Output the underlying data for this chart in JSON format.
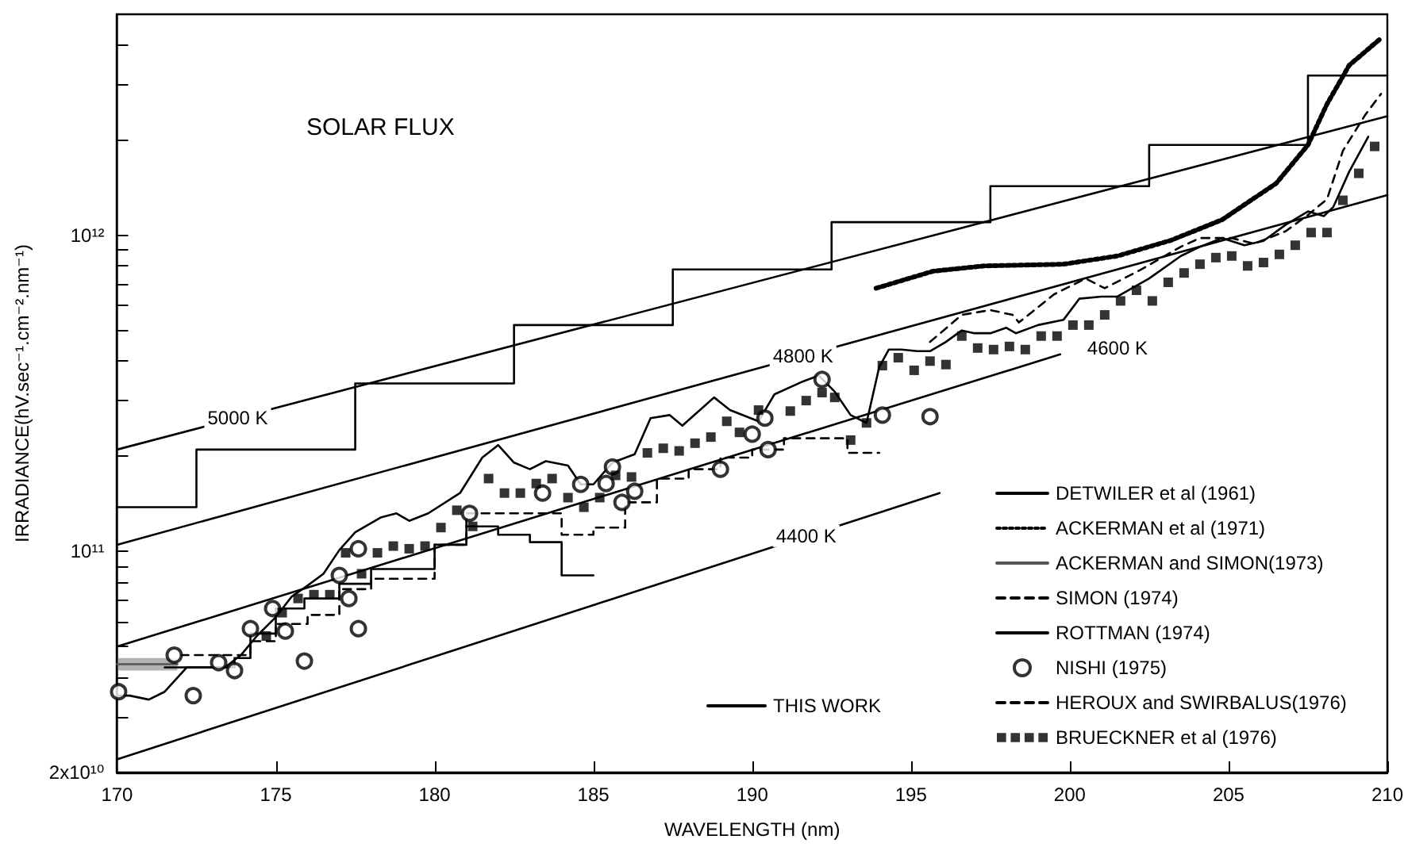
{
  "chart_data": {
    "type": "line",
    "title": "SOLAR FLUX",
    "xlabel": "WAVELENGTH (nm)",
    "ylabel": "IRRADIANCE(hV.sec⁻¹.cm⁻².nm⁻¹)",
    "log": "y",
    "grid": false,
    "legend": "bottom right",
    "xlim": [
      170,
      210
    ],
    "xticks": [
      170,
      175,
      180,
      185,
      190,
      195,
      200,
      205,
      210
    ],
    "ylim": [
      20000000000.0,
      5000000000000.0
    ],
    "yticks": [
      {
        "value": 20000000000.0,
        "label": "2x10¹⁰"
      },
      {
        "value": 30000000000.0,
        "label": null
      },
      {
        "value": 40000000000.0,
        "label": null
      },
      {
        "value": 50000000000.0,
        "label": null
      },
      {
        "value": 60000000000.0,
        "label": null
      },
      {
        "value": 70000000000.0,
        "label": null
      },
      {
        "value": 80000000000.0,
        "label": null
      },
      {
        "value": 90000000000.0,
        "label": null
      },
      {
        "value": 100000000000.0,
        "label": "10¹¹"
      },
      {
        "value": 200000000000.0,
        "label": null
      },
      {
        "value": 300000000000.0,
        "label": null
      },
      {
        "value": 400000000000.0,
        "label": null
      },
      {
        "value": 500000000000.0,
        "label": null
      },
      {
        "value": 600000000000.0,
        "label": null
      },
      {
        "value": 700000000000.0,
        "label": null
      },
      {
        "value": 800000000000.0,
        "label": null
      },
      {
        "value": 900000000000.0,
        "label": null
      },
      {
        "value": 1000000000000.0,
        "label": "10¹²"
      },
      {
        "value": 2000000000000.0,
        "label": null
      },
      {
        "value": 3000000000000.0,
        "label": null
      },
      {
        "value": 4000000000000.0,
        "label": null
      }
    ],
    "annotations": [
      {
        "text": "5000 K",
        "x": 173.8,
        "y": 264000000000.0
      },
      {
        "text": "4800 K",
        "x": 191.6,
        "y": 415000000000.0
      },
      {
        "text": "4600 K",
        "x": 201.5,
        "y": 440000000000.0
      },
      {
        "text": "4400 K",
        "x": 191.7,
        "y": 112000000000.0
      }
    ],
    "series": [
      {
        "name": "THIS WORK",
        "line_style": "solid",
        "color": "#000000",
        "x": [
          170.0,
          170.4,
          171.0,
          171.5,
          172.2,
          173.4,
          173.9,
          174.4,
          175.0,
          175.5,
          176.0,
          176.5,
          177.0,
          177.5,
          178.3,
          178.8,
          179.2,
          179.8,
          180.8,
          181.5,
          182.0,
          182.5,
          183.0,
          183.5,
          184.2,
          184.6,
          185.0,
          185.6,
          186.3,
          186.8,
          187.4,
          187.8,
          188.8,
          189.3,
          190.2,
          190.7,
          191.6,
          192.1,
          192.6,
          193.1,
          193.6,
          194.0,
          194.3,
          194.7,
          195.2,
          195.6,
          196.1,
          196.6,
          197.0,
          197.5,
          198.0,
          198.3,
          199.0,
          199.8,
          200.3,
          201.0,
          201.5,
          202.5,
          203.5,
          204.1,
          204.8,
          205.5,
          206.1,
          206.8,
          207.5,
          208.0,
          208.3,
          208.8,
          209.4
        ],
        "values": [
          35000000000.0,
          35000000000.0,
          34000000000.0,
          36000000000.0,
          43000000000.0,
          43000000000.0,
          47000000000.0,
          54000000000.0,
          62000000000.0,
          72000000000.0,
          78000000000.0,
          85000000000.0,
          101000000000.0,
          115000000000.0,
          128000000000.0,
          132000000000.0,
          125000000000.0,
          132000000000.0,
          153000000000.0,
          198000000000.0,
          217000000000.0,
          191000000000.0,
          182000000000.0,
          193000000000.0,
          187000000000.0,
          163000000000.0,
          163000000000.0,
          191000000000.0,
          203000000000.0,
          264000000000.0,
          270000000000.0,
          250000000000.0,
          307000000000.0,
          280000000000.0,
          258000000000.0,
          314000000000.0,
          345000000000.0,
          360000000000.0,
          320000000000.0,
          270000000000.0,
          255000000000.0,
          383000000000.0,
          435000000000.0,
          435000000000.0,
          430000000000.0,
          430000000000.0,
          460000000000.0,
          500000000000.0,
          490000000000.0,
          490000000000.0,
          510000000000.0,
          490000000000.0,
          520000000000.0,
          540000000000.0,
          630000000000.0,
          640000000000.0,
          640000000000.0,
          730000000000.0,
          860000000000.0,
          920000000000.0,
          980000000000.0,
          930000000000.0,
          960000000000.0,
          1080000000000.0,
          1190000000000.0,
          1150000000000.0,
          1230000000000.0,
          1590000000000.0,
          2050000000000.0
        ]
      },
      {
        "name": "DETWILER et al (1961)",
        "type": "step",
        "line_style": "solid",
        "color": "#000000",
        "x": [
          170,
          172.5,
          177.5,
          182.5,
          187.5,
          192.5,
          197.5,
          202.5,
          207.5,
          210
        ],
        "values": [
          138000000000.0,
          210000000000.0,
          340000000000.0,
          520000000000.0,
          780000000000.0,
          1100000000000.0,
          1430000000000.0,
          1930000000000.0,
          3200000000000.0,
          3200000000000.0
        ]
      },
      {
        "name": "ACKERMAN et al (1971)",
        "line_style": "dotted",
        "color": "#000000",
        "x": [
          193.9,
          195.7,
          197.3,
          199.8,
          201.5,
          203.2,
          204.8,
          206.5,
          207.5,
          208.1,
          208.8,
          209.8
        ],
        "values": [
          680000000000.0,
          770000000000.0,
          800000000000.0,
          810000000000.0,
          860000000000.0,
          965000000000.0,
          1120000000000.0,
          1460000000000.0,
          1930000000000.0,
          2600000000000.0,
          3450000000000.0,
          4200000000000.0
        ]
      },
      {
        "name": "ACKERMAN and SIMON(1973)",
        "line_style": "solid",
        "color": "#555555",
        "x": [
          170,
          171.9
        ],
        "values": [
          44000000000.0,
          44000000000.0
        ],
        "lower": [
          42000000000.0,
          42000000000.0
        ],
        "upper": [
          46000000000.0,
          46000000000.0
        ]
      },
      {
        "name": "SIMON (1974)",
        "line_style": "dashed",
        "color": "#000000",
        "x": [
          195.6,
          196.6,
          197.5,
          198.2,
          198.4,
          199.5,
          200.5,
          201.1,
          202.2,
          203.5,
          204.1,
          205.1,
          205.8,
          206.8,
          207.5,
          208.1,
          208.6,
          209.3,
          209.8
        ],
        "values": [
          460000000000.0,
          560000000000.0,
          580000000000.0,
          560000000000.0,
          530000000000.0,
          650000000000.0,
          730000000000.0,
          680000000000.0,
          775000000000.0,
          920000000000.0,
          980000000000.0,
          980000000000.0,
          940000000000.0,
          1030000000000.0,
          1160000000000.0,
          1300000000000.0,
          1850000000000.0,
          2400000000000.0,
          2800000000000.0
        ]
      },
      {
        "name": "ROTTMAN (1974)",
        "type": "step",
        "line_style": "solid",
        "color": "#000000",
        "x": [
          171.5,
          173.7,
          174.2,
          175,
          175.9,
          177,
          178,
          180,
          181,
          182,
          183,
          184,
          185
        ],
        "values": [
          43000000000.0,
          46000000000.0,
          55000000000.0,
          66000000000.0,
          71000000000.0,
          79000000000.0,
          88000000000.0,
          105000000000.0,
          120000000000.0,
          113000000000.0,
          107000000000.0,
          84000000000.0,
          84000000000.0
        ]
      },
      {
        "name": "NISHI (1975)",
        "type": "scatter",
        "marker": "circle",
        "color": "#000000",
        "x": [
          170.05,
          171.8,
          172.4,
          173.2,
          173.7,
          174.2,
          174.9,
          175.3,
          175.9,
          177.0,
          177.3,
          177.6,
          177.6,
          181.1,
          183.4,
          184.6,
          185.4,
          185.6,
          185.9,
          186.3,
          189.0,
          190.0,
          190.4,
          190.5,
          192.2,
          194.1,
          195.6
        ],
        "values": [
          36000000000.0,
          47000000000.0,
          35000000000.0,
          44500000000.0,
          42000000000.0,
          57000000000.0,
          66000000000.0,
          56000000000.0,
          45000000000.0,
          84000000000.0,
          71000000000.0,
          57000000000.0,
          102000000000.0,
          132000000000.0,
          153000000000.0,
          163000000000.0,
          164000000000.0,
          185000000000.0,
          143000000000.0,
          155000000000.0,
          182000000000.0,
          235000000000.0,
          264000000000.0,
          210000000000.0,
          350000000000.0,
          270000000000.0,
          267000000000.0
        ]
      },
      {
        "name": "HEROUX and SWIRBALUS(1976)",
        "type": "step",
        "line_style": "dashed",
        "color": "#000000",
        "x": [
          172,
          174.2,
          175,
          176,
          177,
          178,
          180,
          181,
          184,
          185,
          186,
          187,
          188,
          189,
          190,
          191,
          193,
          194
        ],
        "values": [
          47000000000.0,
          52000000000.0,
          59000000000.0,
          63000000000.0,
          76000000000.0,
          82000000000.0,
          105000000000.0,
          132000000000.0,
          113000000000.0,
          119000000000.0,
          143000000000.0,
          170000000000.0,
          182000000000.0,
          198000000000.0,
          210000000000.0,
          228000000000.0,
          205000000000.0,
          205000000000.0
        ]
      },
      {
        "name": "BRUECKNER et al (1976)",
        "type": "scatter",
        "marker": "square",
        "color": "#000000",
        "x": [
          174.7,
          175.2,
          175.7,
          176.2,
          176.7,
          177.2,
          177.7,
          178.2,
          178.7,
          179.2,
          179.7,
          180.2,
          180.7,
          181.2,
          181.7,
          182.2,
          182.7,
          183.2,
          183.7,
          184.2,
          184.7,
          185.2,
          185.7,
          186.2,
          186.7,
          187.2,
          187.7,
          188.2,
          188.7,
          189.2,
          189.6,
          190.2,
          191.2,
          191.7,
          192.2,
          192.6,
          193.1,
          193.6,
          194.1,
          194.6,
          195.1,
          195.6,
          196.1,
          196.6,
          197.1,
          197.6,
          198.1,
          198.6,
          199.1,
          199.6,
          200.1,
          200.6,
          201.1,
          201.6,
          202.1,
          202.6,
          203.1,
          203.6,
          204.1,
          204.6,
          205.1,
          205.6,
          206.1,
          206.6,
          207.1,
          207.6,
          208.1,
          208.6,
          209.1,
          209.6
        ],
        "values": [
          54000000000.0,
          64000000000.0,
          71000000000.0,
          73000000000.0,
          73000000000.0,
          99000000000.0,
          85000000000.0,
          99000000000.0,
          104000000000.0,
          102000000000.0,
          104000000000.0,
          119000000000.0,
          135000000000.0,
          120000000000.0,
          170000000000.0,
          153000000000.0,
          153000000000.0,
          164000000000.0,
          170000000000.0,
          148000000000.0,
          138000000000.0,
          148000000000.0,
          174000000000.0,
          172000000000.0,
          205000000000.0,
          212000000000.0,
          208000000000.0,
          220000000000.0,
          230000000000.0,
          258000000000.0,
          238000000000.0,
          280000000000.0,
          278000000000.0,
          300000000000.0,
          318000000000.0,
          307000000000.0,
          225000000000.0,
          255000000000.0,
          387000000000.0,
          410000000000.0,
          374000000000.0,
          400000000000.0,
          390000000000.0,
          480000000000.0,
          440000000000.0,
          435000000000.0,
          445000000000.0,
          435000000000.0,
          480000000000.0,
          480000000000.0,
          520000000000.0,
          520000000000.0,
          560000000000.0,
          620000000000.0,
          670000000000.0,
          620000000000.0,
          710000000000.0,
          760000000000.0,
          810000000000.0,
          850000000000.0,
          860000000000.0,
          800000000000.0,
          820000000000.0,
          870000000000.0,
          930000000000.0,
          1020000000000.0,
          1020000000000.0,
          1290000000000.0,
          1570000000000.0,
          1910000000000.0
        ]
      },
      {
        "line_style": "solid",
        "color": "#000000",
        "x": [
          170,
          210
        ],
        "values": [
          210000000000.0,
          2380000000000.0
        ]
      },
      {
        "line_style": "solid",
        "color": "#000000",
        "x": [
          170,
          210
        ],
        "values": [
          105000000000.0,
          1340000000000.0
        ]
      },
      {
        "line_style": "solid",
        "color": "#000000",
        "x": [
          170,
          199.7
        ],
        "values": [
          50000000000.0,
          420000000000.0
        ]
      },
      {
        "line_style": "solid",
        "color": "#000000",
        "x": [
          170,
          195.9
        ],
        "values": [
          22000000000.0,
          153000000000.0
        ]
      }
    ]
  }
}
